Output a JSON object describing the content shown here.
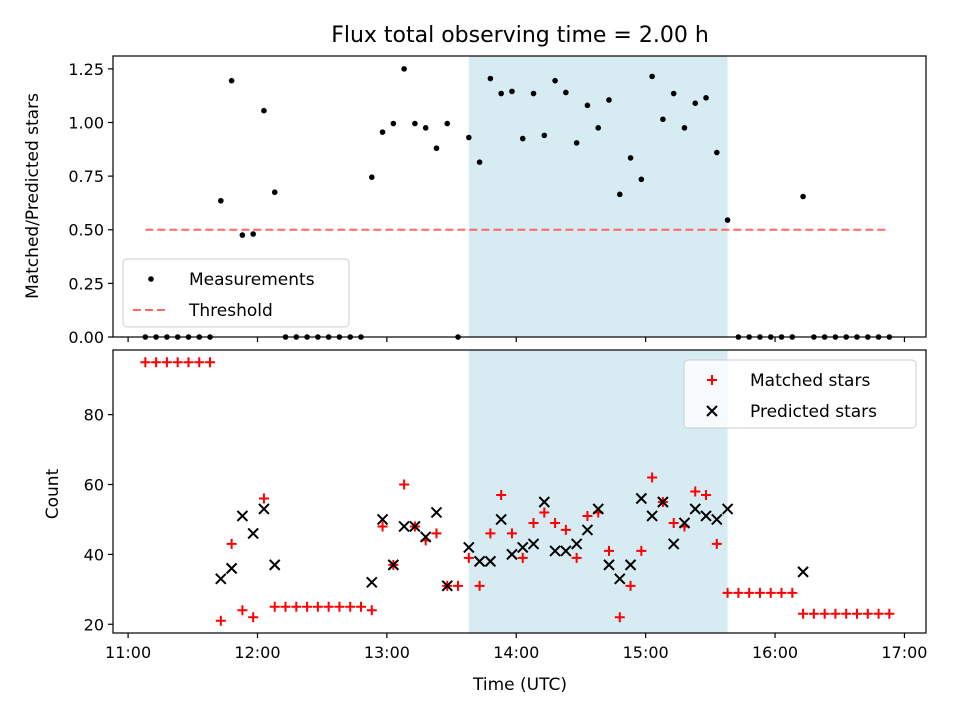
{
  "chart_data": [
    {
      "type": "scatter",
      "title": "Flux total observing time = 2.00 h",
      "xlabel": "",
      "ylabel": "Matched/Predicted stars",
      "xlim": [
        "10:53",
        "17:10"
      ],
      "ylim": [
        0,
        1.31
      ],
      "yticks": [
        "0.00",
        "0.25",
        "0.50",
        "0.75",
        "1.00",
        "1.25"
      ],
      "grid": false,
      "legend": {
        "placement": "lower-left",
        "entries": [
          "Measurements",
          "Threshold"
        ]
      },
      "shaded_interval": [
        "13:38",
        "15:38"
      ],
      "shade_color": "#add8e6",
      "series": [
        {
          "name": "Measurements",
          "kind": "scatter",
          "color": "#000000",
          "x": [
            "11:08",
            "11:13",
            "11:18",
            "11:23",
            "11:28",
            "11:33",
            "11:38",
            "11:43",
            "11:48",
            "11:53",
            "11:58",
            "12:03",
            "12:08",
            "12:13",
            "12:18",
            "12:23",
            "12:28",
            "12:33",
            "12:38",
            "12:43",
            "12:48",
            "12:53",
            "12:58",
            "13:03",
            "13:08",
            "13:13",
            "13:18",
            "13:23",
            "13:28",
            "13:33",
            "13:38",
            "13:43",
            "13:48",
            "13:53",
            "13:58",
            "14:03",
            "14:08",
            "14:13",
            "14:18",
            "14:23",
            "14:28",
            "14:33",
            "14:38",
            "14:43",
            "14:48",
            "14:53",
            "14:58",
            "15:03",
            "15:08",
            "15:13",
            "15:18",
            "15:23",
            "15:28",
            "15:33",
            "15:38",
            "15:43",
            "15:48",
            "15:53",
            "15:58",
            "16:03",
            "16:08",
            "16:13",
            "16:18",
            "16:23",
            "16:28",
            "16:33",
            "16:38",
            "16:43",
            "16:48",
            "16:53"
          ],
          "y": [
            0,
            0,
            0,
            0,
            0,
            0,
            0,
            0.635,
            1.195,
            0.475,
            0.48,
            1.055,
            0.675,
            0,
            0,
            0,
            0,
            0,
            0,
            0,
            0,
            0.745,
            0.955,
            0.995,
            1.25,
            0.995,
            0.975,
            0.88,
            0.995,
            0,
            0.93,
            0.815,
            1.205,
            1.135,
            1.145,
            0.925,
            1.135,
            0.94,
            1.195,
            1.14,
            0.905,
            1.08,
            0.975,
            1.105,
            0.665,
            0.835,
            0.735,
            1.215,
            1.015,
            1.135,
            0.975,
            1.09,
            1.115,
            0.86,
            0.545,
            0,
            0,
            0,
            0,
            0,
            0,
            0.655,
            0,
            0,
            0,
            0,
            0,
            0,
            0,
            0
          ]
        },
        {
          "name": "Threshold",
          "kind": "line",
          "style": "dashed",
          "color": "#ff6666",
          "x": [
            "11:08",
            "16:53"
          ],
          "y": [
            0.5,
            0.5
          ]
        }
      ]
    },
    {
      "type": "scatter",
      "title": "",
      "xlabel": "Time (UTC)",
      "ylabel": "Count",
      "xlim": [
        "10:53",
        "17:10"
      ],
      "ylim": [
        17.5,
        98.5
      ],
      "yticks": [
        "20",
        "40",
        "60",
        "80"
      ],
      "xticks": [
        "11:00",
        "12:00",
        "13:00",
        "14:00",
        "15:00",
        "16:00",
        "17:00"
      ],
      "grid": false,
      "legend": {
        "placement": "upper-right",
        "entries": [
          "Matched stars",
          "Predicted stars"
        ]
      },
      "shaded_interval": [
        "13:38",
        "15:38"
      ],
      "shade_color": "#add8e6",
      "series": [
        {
          "name": "Matched stars",
          "kind": "scatter",
          "marker": "+",
          "color": "#ff0000",
          "x": [
            "11:08",
            "11:13",
            "11:18",
            "11:23",
            "11:28",
            "11:33",
            "11:38",
            "11:43",
            "11:48",
            "11:53",
            "11:58",
            "12:03",
            "12:08",
            "12:13",
            "12:18",
            "12:23",
            "12:28",
            "12:33",
            "12:38",
            "12:43",
            "12:48",
            "12:53",
            "12:58",
            "13:03",
            "13:08",
            "13:13",
            "13:18",
            "13:23",
            "13:28",
            "13:33",
            "13:38",
            "13:43",
            "13:48",
            "13:53",
            "13:58",
            "14:03",
            "14:08",
            "14:13",
            "14:18",
            "14:23",
            "14:28",
            "14:33",
            "14:38",
            "14:43",
            "14:48",
            "14:53",
            "14:58",
            "15:03",
            "15:08",
            "15:13",
            "15:18",
            "15:23",
            "15:28",
            "15:33",
            "15:38",
            "15:43",
            "15:48",
            "15:53",
            "15:58",
            "16:03",
            "16:08",
            "16:13",
            "16:18",
            "16:23",
            "16:28",
            "16:33",
            "16:38",
            "16:43",
            "16:48",
            "16:53"
          ],
          "y": [
            95,
            95,
            95,
            95,
            95,
            95,
            95,
            21,
            43,
            24,
            22,
            56,
            25,
            25,
            25,
            25,
            25,
            25,
            25,
            25,
            25,
            24,
            48,
            37,
            60,
            48,
            44,
            46,
            31,
            31,
            39,
            31,
            46,
            57,
            46,
            39,
            49,
            52,
            49,
            47,
            39,
            51,
            52,
            41,
            22,
            31,
            41,
            62,
            55,
            49,
            48,
            58,
            57,
            43,
            29,
            29,
            29,
            29,
            29,
            29,
            29,
            23,
            23,
            23,
            23,
            23,
            23,
            23,
            23,
            23
          ]
        },
        {
          "name": "Predicted stars",
          "kind": "scatter",
          "marker": "x",
          "color": "#000000",
          "x": [
            "11:43",
            "11:48",
            "11:53",
            "11:58",
            "12:03",
            "12:08",
            "12:53",
            "12:58",
            "13:03",
            "13:08",
            "13:13",
            "13:18",
            "13:23",
            "13:28",
            "13:38",
            "13:43",
            "13:48",
            "13:53",
            "13:58",
            "14:03",
            "14:08",
            "14:13",
            "14:18",
            "14:23",
            "14:28",
            "14:33",
            "14:38",
            "14:43",
            "14:48",
            "14:53",
            "14:58",
            "15:03",
            "15:08",
            "15:13",
            "15:18",
            "15:23",
            "15:28",
            "15:33",
            "15:38",
            "16:13"
          ],
          "y": [
            33,
            36,
            51,
            46,
            53,
            37,
            32,
            50,
            37,
            48,
            48,
            45,
            52,
            31,
            42,
            38,
            38,
            50,
            40,
            42,
            43,
            55,
            41,
            41,
            43,
            47,
            53,
            37,
            33,
            37,
            56,
            51,
            55,
            43,
            49,
            53,
            51,
            50,
            53,
            35
          ]
        }
      ]
    }
  ]
}
